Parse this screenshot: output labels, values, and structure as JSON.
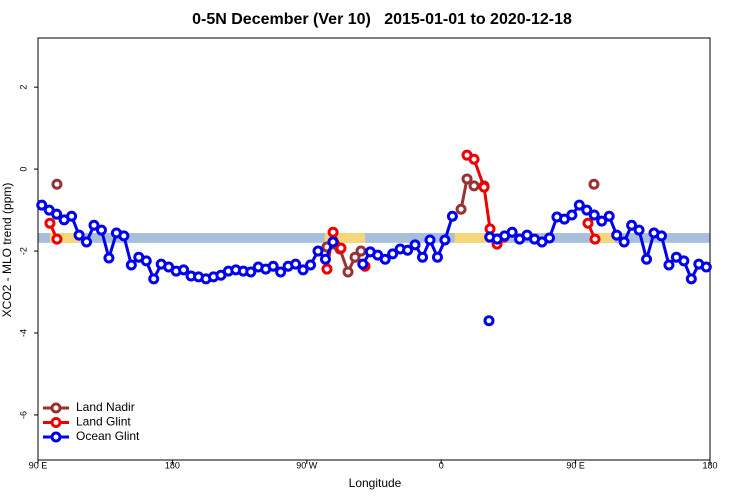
{
  "chart_data": {
    "type": "line",
    "title": "0-5N December (Ver 10)   2015-01-01 to 2020-12-18",
    "x_label": "Longitude",
    "y_label": "XCO2 - MLO trend (ppm)",
    "xlim": [
      90,
      540
    ],
    "ylim": [
      -7.1,
      3.2
    ],
    "xticks": [
      {
        "value": 90,
        "label": "90 E"
      },
      180,
      {
        "value": 270,
        "label": "90 W"
      },
      {
        "value": 360,
        "label": "0"
      },
      {
        "value": 450,
        "label": "90 E"
      },
      {
        "value": 540,
        "label": "180"
      }
    ],
    "yticks": [
      -6,
      -4,
      -2,
      0,
      2
    ],
    "legend": "bottom-left",
    "band": {
      "ylim": [
        -1.8,
        -1.56
      ],
      "color": "#a8bfdc",
      "land_color": "#f5d77a",
      "land": [
        [
          98,
          118
        ],
        [
          282,
          309
        ],
        [
          369,
          393
        ],
        [
          460,
          476
        ]
      ]
    },
    "series": [
      {
        "name": "Land Nadir",
        "color": "#993333",
        "x": [
          102.7,
          null,
          283.5,
          292.2,
          297.6,
          302.3,
          306.3,
          null,
          373.3,
          377.3,
          382,
          388.7,
          null,
          462.3
        ],
        "values": [
          -0.37,
          null,
          -1.9,
          -1.95,
          -2.51,
          -2.15,
          -2.0,
          null,
          -0.98,
          -0.24,
          -0.41,
          -0.41,
          null,
          -0.37
        ]
      },
      {
        "name": "Land Glint",
        "color": "#ee0000",
        "x": [
          98,
          102.7,
          null,
          283.5,
          287.6,
          292.9,
          null,
          309,
          null,
          377.3,
          382,
          388.7,
          392.7,
          397.4,
          402,
          null,
          458.3,
          463
        ],
        "values": [
          -1.32,
          -1.71,
          null,
          -2.44,
          -1.54,
          -1.93,
          null,
          -2.37,
          null,
          0.34,
          0.24,
          -0.44,
          -1.46,
          -1.83,
          -1.66,
          null,
          -1.32,
          -1.71
        ]
      },
      {
        "name": "Ocean Glint",
        "color": "#0000ee",
        "x": [
          92.5,
          97.5,
          102.5,
          107.5,
          112.5,
          117.5,
          122.5,
          127.5,
          132.5,
          137.5,
          142.5,
          147.5,
          152.5,
          157.5,
          162.5,
          167.5,
          172.5,
          177.5,
          182.5,
          187.5,
          192.5,
          197.5,
          202.5,
          207.5,
          212.5,
          217.5,
          222.5,
          227.5,
          232.5,
          237.5,
          242.5,
          247.5,
          252.5,
          257.5,
          262.5,
          267.5,
          272.5,
          277.5,
          282.5,
          287.5,
          null,
          307.5,
          312.5,
          317.5,
          322.5,
          327.5,
          332.5,
          337.5,
          342.5,
          347.5,
          352.5,
          357.5,
          362.5,
          367.5,
          null,
          392,
          null,
          392.5,
          397.5,
          402.5,
          407.5,
          412.5,
          417.5,
          422.5,
          427.5,
          432.5,
          437.5,
          442.5,
          447.5,
          452.5,
          457.5,
          462.5,
          467.5,
          472.5,
          477.5,
          482.5,
          487.5,
          492.5,
          497.5,
          502.5,
          507.5,
          512.5,
          517.5,
          522.5,
          527.5,
          532.5,
          537.5
        ],
        "values": [
          -0.88,
          -1.0,
          -1.1,
          -1.24,
          -1.15,
          -1.61,
          -1.78,
          -1.37,
          -1.49,
          -2.17,
          -1.56,
          -1.63,
          -2.34,
          -2.15,
          -2.24,
          -2.68,
          -2.32,
          -2.39,
          -2.49,
          -2.46,
          -2.61,
          -2.63,
          -2.68,
          -2.63,
          -2.59,
          -2.49,
          -2.46,
          -2.49,
          -2.51,
          -2.39,
          -2.44,
          -2.37,
          -2.51,
          -2.37,
          -2.32,
          -2.46,
          -2.34,
          -2.0,
          -2.2,
          -1.78,
          null,
          -2.32,
          -2.02,
          -2.1,
          -2.2,
          -2.07,
          -1.95,
          -1.98,
          -1.85,
          -2.15,
          -1.73,
          -2.15,
          -1.73,
          -1.15,
          null,
          -3.7,
          null,
          -1.66,
          -1.71,
          -1.63,
          -1.54,
          -1.71,
          -1.61,
          -1.71,
          -1.78,
          -1.68,
          -1.17,
          -1.22,
          -1.12,
          -0.88,
          -1.0,
          -1.12,
          -1.27,
          -1.15,
          -1.61,
          -1.78,
          -1.37,
          -1.49,
          -2.2,
          -1.56,
          -1.63,
          -2.34,
          -2.15,
          -2.24,
          -2.68,
          -2.32,
          -2.39
        ]
      }
    ]
  }
}
